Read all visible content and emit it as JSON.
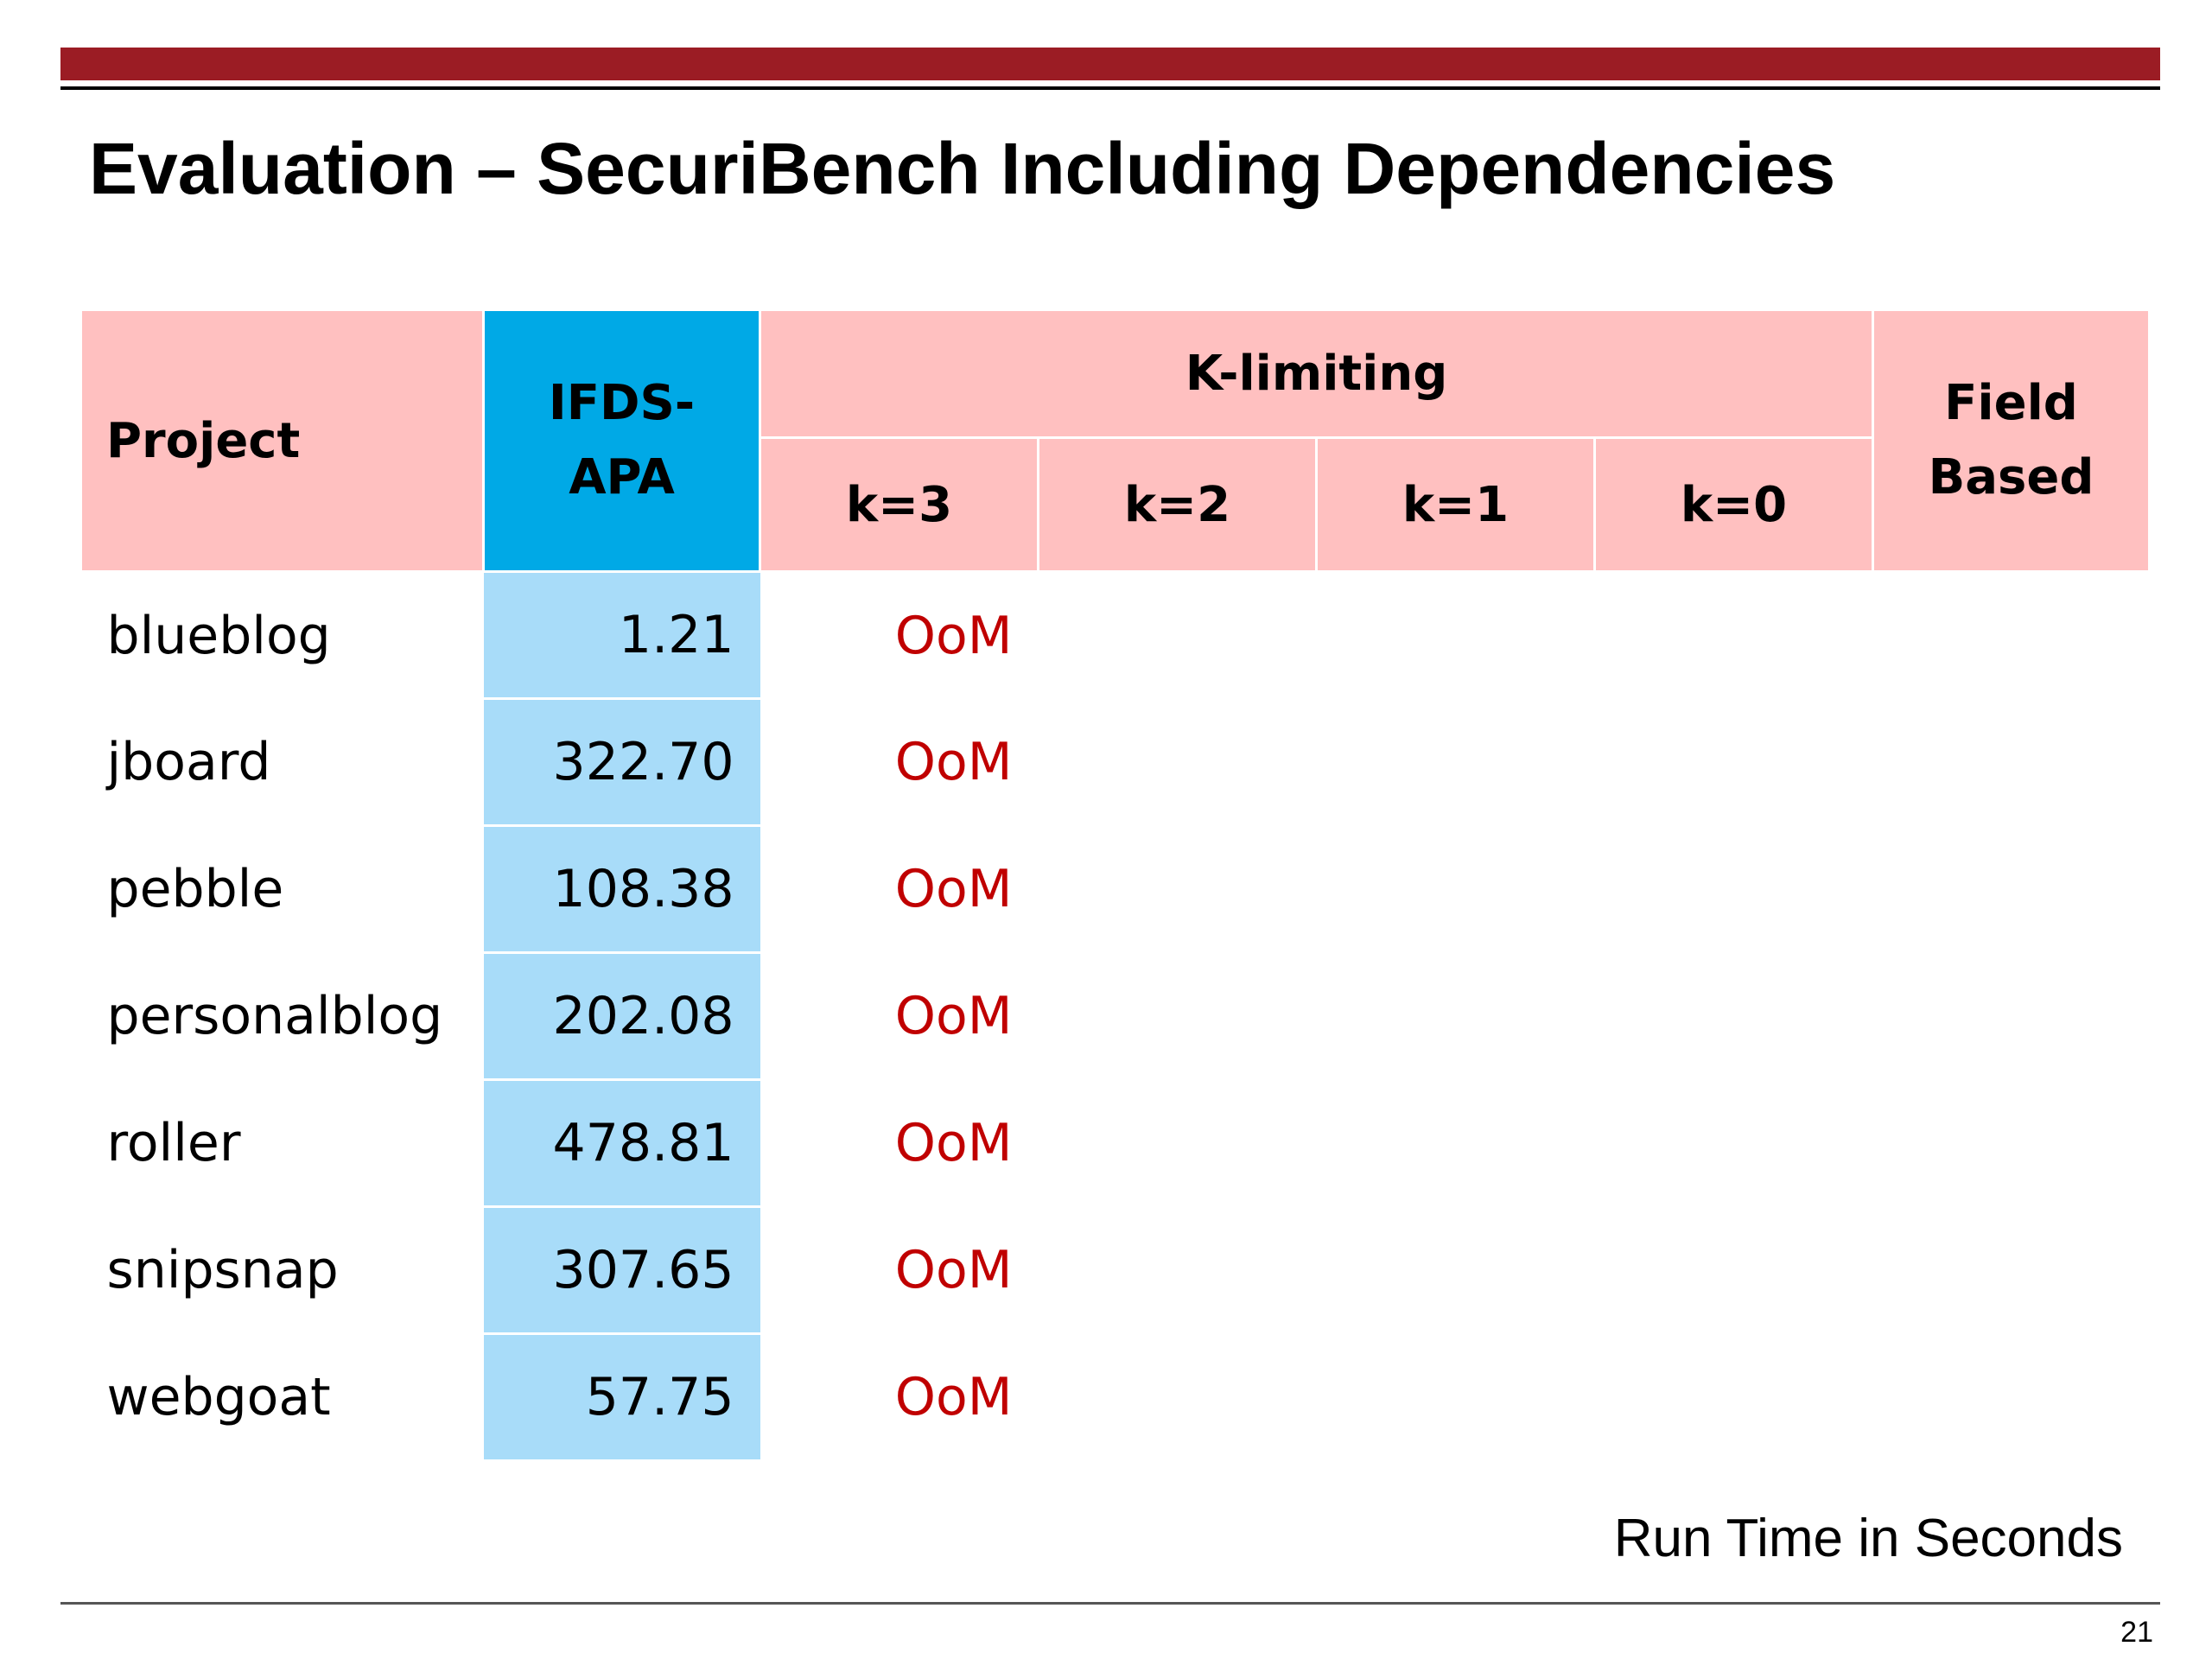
{
  "slide": {
    "title": "Evaluation – SecuriBench Including Dependencies",
    "footnote": "Run Time in Seconds",
    "page_number": "21",
    "colors": {
      "top_bar": "#9b1c24",
      "header_pink": "#ffc0c0",
      "header_blue": "#00a9e6",
      "ifds_cell_blue": "#a8dcf9",
      "oom_red": "#c00000"
    }
  },
  "table": {
    "header": {
      "project": "Project",
      "ifds_line1": "IFDS-",
      "ifds_line2": "APA",
      "k_limiting": "K-limiting",
      "k3": "k=3",
      "k2": "k=2",
      "k1": "k=1",
      "k0": "k=0",
      "field_line1": "Field",
      "field_line2": "Based"
    },
    "rows": [
      {
        "project": "blueblog",
        "ifds_apa": "1.21",
        "k3": "OoM"
      },
      {
        "project": "jboard",
        "ifds_apa": "322.70",
        "k3": "OoM"
      },
      {
        "project": "pebble",
        "ifds_apa": "108.38",
        "k3": "OoM"
      },
      {
        "project": "personalblog",
        "ifds_apa": "202.08",
        "k3": "OoM"
      },
      {
        "project": "roller",
        "ifds_apa": "478.81",
        "k3": "OoM"
      },
      {
        "project": "snipsnap",
        "ifds_apa": "307.65",
        "k3": "OoM"
      },
      {
        "project": "webgoat",
        "ifds_apa": "57.75",
        "k3": "OoM"
      }
    ]
  }
}
